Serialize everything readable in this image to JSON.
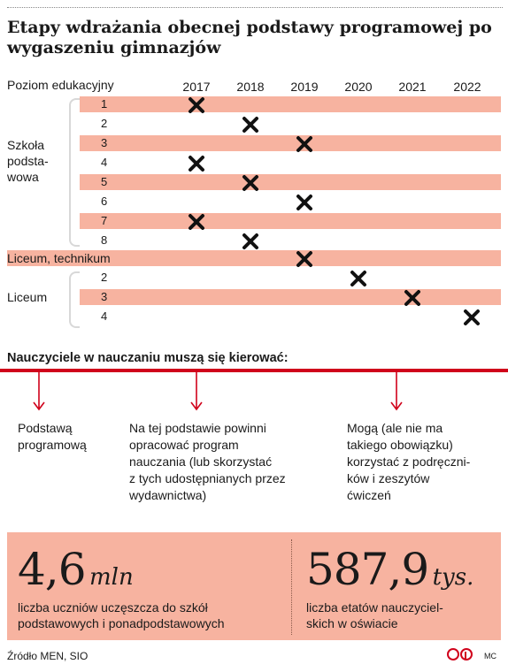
{
  "title": "Etapy wdrażania obecnej podstawy programowej po wygaszeniu gimnazjów",
  "header_label": "Poziom edukacyjny",
  "years": [
    "2017",
    "2018",
    "2019",
    "2020",
    "2021",
    "2022"
  ],
  "groups": {
    "szkola": [
      "Szkoła",
      "podsta-",
      "wowa"
    ],
    "liceum_technikum": "Liceum, technikum",
    "liceum": "Liceum"
  },
  "rows": [
    {
      "label": "1",
      "group": "Szkoła podstawowa",
      "year": "2017"
    },
    {
      "label": "2",
      "group": "Szkoła podstawowa",
      "year": "2018"
    },
    {
      "label": "3",
      "group": "Szkoła podstawowa",
      "year": "2019"
    },
    {
      "label": "4",
      "group": "Szkoła podstawowa",
      "year": "2017"
    },
    {
      "label": "5",
      "group": "Szkoła podstawowa",
      "year": "2018"
    },
    {
      "label": "6",
      "group": "Szkoła podstawowa",
      "year": "2019"
    },
    {
      "label": "7",
      "group": "Szkoła podstawowa",
      "year": "2017"
    },
    {
      "label": "8",
      "group": "Szkoła podstawowa",
      "year": "2018"
    },
    {
      "label": "",
      "group": "Liceum, technikum",
      "year": "2019"
    },
    {
      "label": "2",
      "group": "Liceum",
      "year": "2020"
    },
    {
      "label": "3",
      "group": "Liceum",
      "year": "2021"
    },
    {
      "label": "4",
      "group": "Liceum",
      "year": "2022"
    }
  ],
  "subheading": "Nauczyciele w nauczaniu muszą się kierować:",
  "columns": [
    {
      "lines": [
        "Podstawą",
        "programową"
      ]
    },
    {
      "lines": [
        "Na tej podstawie powinni",
        "opracować program",
        "nauczania (lub skorzystać",
        "z tych udostępnianych przez",
        "wydawnictwa)"
      ]
    },
    {
      "lines": [
        "Mogą (ale nie ma",
        "takiego obowiązku)",
        "korzystać z podręczni-",
        "ków i zeszytów",
        "ćwiczeń"
      ]
    }
  ],
  "stats": [
    {
      "value": "4,6",
      "unit": "mln",
      "label_lines": [
        "liczba uczniów uczęszcza do szkół",
        "podstawowych i ponadpodstawowych"
      ]
    },
    {
      "value": "587,9",
      "unit": "tys.",
      "label_lines": [
        "liczba etatów nauczyciel-",
        "skich w oświacie"
      ]
    }
  ],
  "source": "Źródło MEN, SIO",
  "credit": "MC",
  "colors": {
    "band": "#f7b3a0",
    "accent": "#d0021b"
  }
}
